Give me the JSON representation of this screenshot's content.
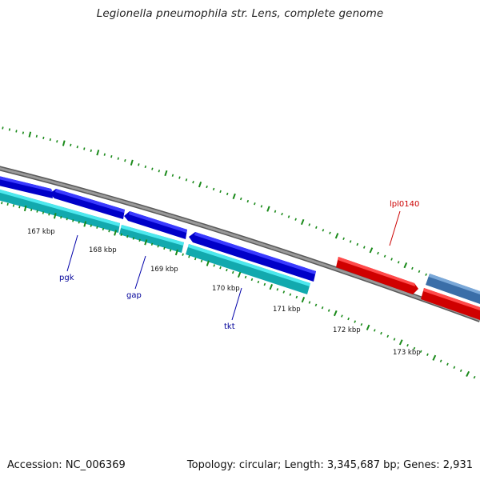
{
  "title": "Legionella pneumophila str. Lens, complete genome",
  "footer": {
    "accession": "Accession: NC_006369",
    "stats": "Topology: circular; Length: 3,345,687 bp; Genes: 2,931"
  },
  "colors": {
    "backbone": "#808080",
    "forward_gene": "#0000dd",
    "reverse_gene": "#19d0d8",
    "rna_gene": "#ff0000",
    "other_gene": "#4a80c0",
    "tick": "#1a8a1a",
    "label_blue": "#000099",
    "label_red": "#cc0000"
  },
  "tick_labels": [
    {
      "text": "167 kbp"
    },
    {
      "text": "168 kbp"
    },
    {
      "text": "169 kbp"
    },
    {
      "text": "170 kbp"
    },
    {
      "text": "171 kbp"
    },
    {
      "text": "172 kbp"
    },
    {
      "text": "173 kbp"
    }
  ],
  "gene_labels": [
    {
      "text": "pgk"
    },
    {
      "text": "gap"
    },
    {
      "text": "tkt"
    },
    {
      "text": "lpl0140"
    }
  ]
}
